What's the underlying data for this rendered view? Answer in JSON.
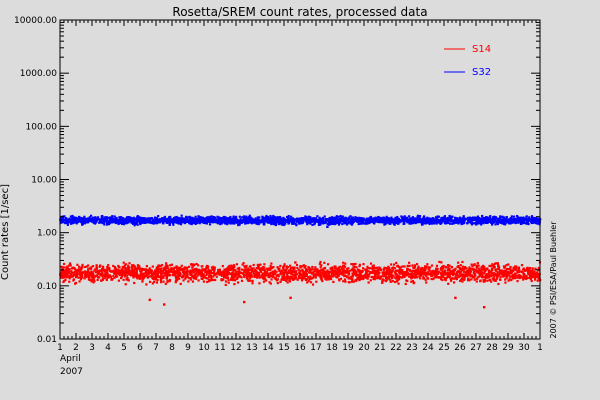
{
  "chart_data": {
    "type": "scatter",
    "title": "Rosetta/SREM count rates, processed data",
    "ylabel": "Count rates [1/sec]",
    "xlabel": "",
    "x_axis": {
      "range": [
        "2007-04-01",
        "2007-05-01"
      ],
      "tick_labels": [
        "1",
        "2",
        "3",
        "4",
        "5",
        "6",
        "7",
        "8",
        "9",
        "10",
        "11",
        "12",
        "13",
        "14",
        "15",
        "16",
        "17",
        "18",
        "19",
        "20",
        "21",
        "22",
        "23",
        "24",
        "25",
        "26",
        "27",
        "28",
        "29",
        "30",
        "1"
      ],
      "month_label": "April",
      "year_label": "2007"
    },
    "y_axis": {
      "scale": "log",
      "range": [
        0.01,
        10000
      ],
      "tick_labels": [
        "0.01",
        "0.10",
        "1.00",
        "10.00",
        "100.00",
        "1000.00",
        "10000.00"
      ]
    },
    "grid": false,
    "legend_position": "top-right",
    "series": [
      {
        "name": "S14",
        "color": "#ff0000",
        "typical_range": [
          0.1,
          0.3
        ],
        "outliers": [
          {
            "x": "2007-04-06.6",
            "y": 0.055
          },
          {
            "x": "2007-04-07.5",
            "y": 0.045
          },
          {
            "x": "2007-04-12.5",
            "y": 0.05
          },
          {
            "x": "2007-04-15.4",
            "y": 0.06
          },
          {
            "x": "2007-04-27.5",
            "y": 0.04
          },
          {
            "x": "2007-04-25.7",
            "y": 0.06
          }
        ]
      },
      {
        "name": "S32",
        "color": "#0000ff",
        "typical_range": [
          1.35,
          2.15
        ],
        "outliers": [
          {
            "x": "2007-04-17.7",
            "y": 1.3
          }
        ]
      }
    ],
    "annotation": "2007 © PSI/ESA/Paul Buehler"
  }
}
